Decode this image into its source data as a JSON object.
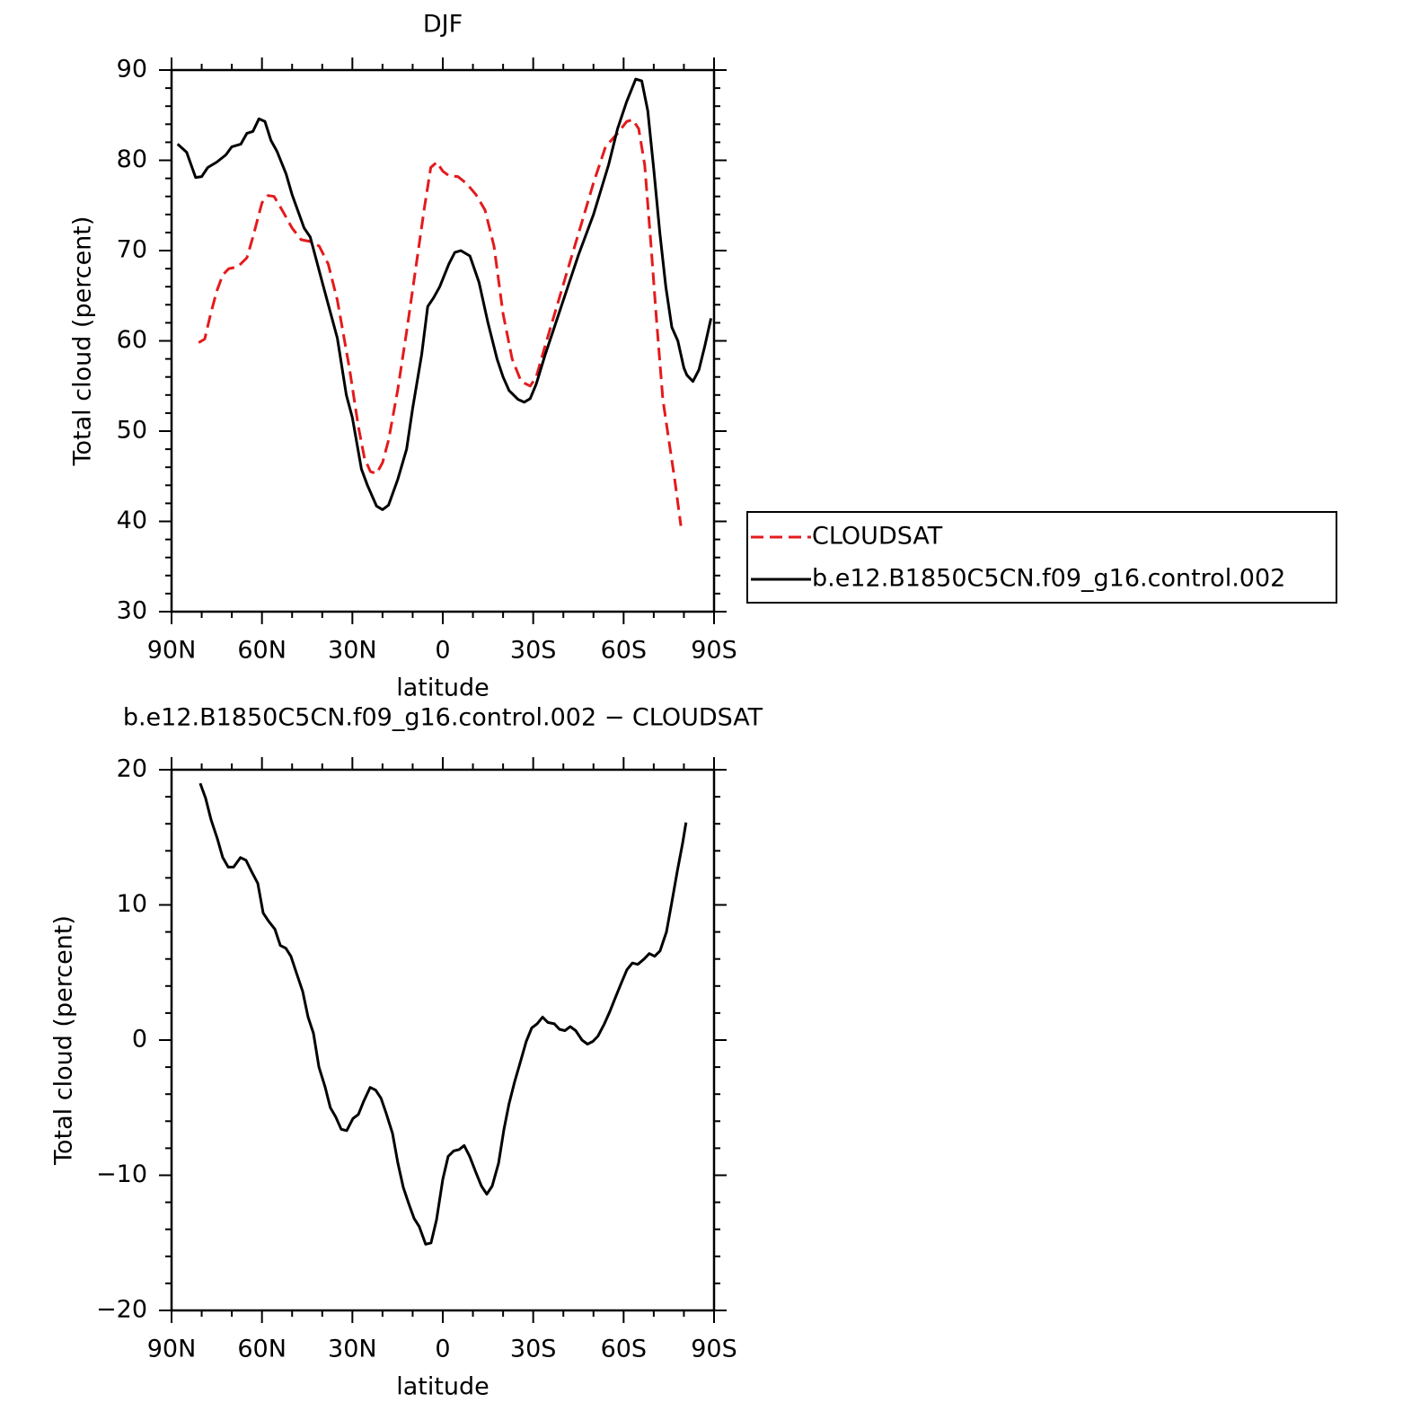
{
  "chart_data": [
    {
      "type": "line",
      "title": "DJF",
      "xlabel": "latitude",
      "ylabel": "Total cloud (percent)",
      "xlim": [
        90,
        -90
      ],
      "xticks": [
        {
          "value": 90,
          "label": "90N"
        },
        {
          "value": 60,
          "label": "60N"
        },
        {
          "value": 30,
          "label": "30N"
        },
        0,
        {
          "value": -30,
          "label": "30S"
        },
        {
          "value": -60,
          "label": "60S"
        },
        {
          "value": -90,
          "label": "90S"
        }
      ],
      "xminorticks": [
        80,
        70,
        50,
        40,
        20,
        10,
        -10,
        -20,
        -40,
        -50,
        -70,
        -80
      ],
      "ylim": [
        30,
        90
      ],
      "yticks": [
        30,
        40,
        50,
        60,
        70,
        80,
        90
      ],
      "yminorticks": [
        32,
        34,
        36,
        38,
        42,
        44,
        46,
        48,
        52,
        54,
        56,
        58,
        62,
        64,
        66,
        68,
        72,
        74,
        76,
        78,
        82,
        84,
        86,
        88
      ],
      "legend": "right",
      "series": [
        {
          "name": "CLOUDSAT",
          "color": "#e41a1c",
          "style": "dashed",
          "x": [
            81,
            79,
            77,
            75,
            73,
            71,
            68,
            65,
            63,
            60,
            58,
            56,
            53,
            50,
            47,
            44,
            41,
            38,
            35,
            31,
            28,
            26,
            24,
            22,
            20,
            18,
            15,
            12,
            9,
            6,
            4,
            2,
            0,
            -2,
            -5,
            -8,
            -11,
            -14,
            -17,
            -20,
            -23,
            -26,
            -29,
            -31,
            -34,
            -38,
            -42,
            -46,
            -50,
            -54,
            -58,
            -61,
            -63,
            -65,
            -67,
            -69,
            -71,
            -73,
            -75,
            -77,
            -79
          ],
          "values": [
            59.8,
            60.2,
            63,
            65.5,
            67.3,
            68,
            68.2,
            69.2,
            71.5,
            75.3,
            76.1,
            76,
            74.3,
            72.5,
            71.2,
            71,
            70.5,
            68.5,
            64.5,
            57,
            50.5,
            47,
            45.5,
            45.3,
            46.5,
            49,
            54.5,
            61,
            68,
            75,
            79.2,
            79.8,
            78.8,
            78.3,
            78.2,
            77.4,
            76.2,
            74.5,
            70.5,
            63,
            58,
            55.5,
            55,
            56,
            59.5,
            64,
            68.5,
            73,
            77.5,
            81.5,
            83,
            84.3,
            84.5,
            83.5,
            79.5,
            71,
            62,
            53.5,
            49,
            44.5,
            39.5
          ]
        },
        {
          "name": "b.e12.B1850C5CN.f09_g16.control.002",
          "color": "#000000",
          "style": "solid",
          "x": [
            88,
            85,
            82,
            80,
            78,
            75,
            72,
            70,
            67,
            65,
            63,
            61,
            59,
            57,
            55,
            52,
            50,
            46,
            44,
            40,
            35,
            32,
            30,
            27,
            25,
            22,
            20,
            18,
            15,
            12,
            10,
            7,
            5,
            3,
            1,
            -2,
            -4,
            -6,
            -9,
            -12,
            -15,
            -18,
            -20,
            -22,
            -25,
            -27,
            -29,
            -31,
            -34,
            -37,
            -40,
            -45,
            -50,
            -55,
            -58,
            -61,
            -64,
            -66,
            -68,
            -70,
            -72,
            -74,
            -76,
            -78,
            -80,
            -81,
            -83,
            -85,
            -87,
            -89
          ],
          "values": [
            81.8,
            80.9,
            78.1,
            78.2,
            79.2,
            79.8,
            80.6,
            81.5,
            81.8,
            83,
            83.2,
            84.6,
            84.3,
            82.2,
            81,
            78.5,
            76.2,
            72.5,
            71.5,
            66.5,
            60.3,
            54,
            51.5,
            45.8,
            44,
            41.7,
            41.3,
            41.8,
            44.6,
            48,
            52.5,
            58.5,
            63.8,
            64.8,
            66,
            68.5,
            69.8,
            70,
            69.4,
            66.5,
            62,
            58,
            56,
            54.5,
            53.5,
            53.2,
            53.6,
            55.2,
            58.5,
            61.5,
            64.5,
            69.5,
            74,
            79.5,
            83.5,
            86.5,
            89,
            88.8,
            85.5,
            79,
            72,
            66,
            61.5,
            60,
            57,
            56.2,
            55.5,
            56.8,
            59.5,
            62.5
          ]
        }
      ]
    },
    {
      "type": "line",
      "title": "b.e12.B1850C5CN.f09_g16.control.002 − CLOUDSAT",
      "xlabel": "latitude",
      "ylabel": "Total cloud (percent)",
      "xlim": [
        90,
        -90
      ],
      "xticks": [
        {
          "value": 90,
          "label": "90N"
        },
        {
          "value": 60,
          "label": "60N"
        },
        {
          "value": 30,
          "label": "30N"
        },
        0,
        {
          "value": -30,
          "label": "30S"
        },
        {
          "value": -60,
          "label": "60S"
        },
        {
          "value": -90,
          "label": "90S"
        }
      ],
      "xminorticks": [
        80,
        70,
        50,
        40,
        20,
        10,
        -10,
        -20,
        -40,
        -50,
        -70,
        -80
      ],
      "ylim": [
        -20,
        20
      ],
      "yticks": [
        {
          "value": -20,
          "label": "−20"
        },
        {
          "value": -10,
          "label": "−10"
        },
        0,
        10,
        20
      ],
      "yminorticks": [
        -18,
        -16,
        -14,
        -12,
        -8,
        -6,
        -4,
        -2,
        2,
        4,
        6,
        8,
        12,
        14,
        16,
        18
      ],
      "series": [
        {
          "color": "#000000",
          "style": "solid",
          "x": [
            80.5,
            78.7,
            76.9,
            74.8,
            73.0,
            71.2,
            69.4,
            67.1,
            65.3,
            63.5,
            61.4,
            59.6,
            57.8,
            55.7,
            53.9,
            52.1,
            50.4,
            48.6,
            46.5,
            44.7,
            42.9,
            41.1,
            39.0,
            37.3,
            35.5,
            33.7,
            31.9,
            29.8,
            28.0,
            26.2,
            24.1,
            22.3,
            20.5,
            18.8,
            16.7,
            14.9,
            13.1,
            11.3,
            9.5,
            7.8,
            5.7,
            3.9,
            2.1,
            0,
            -1.8,
            -3.6,
            -5.4,
            -7.1,
            -8.9,
            -11.0,
            -12.8,
            -14.6,
            -16.4,
            -18.5,
            -20.3,
            -22.0,
            -23.8,
            -25.9,
            -27.7,
            -29.5,
            -31.3,
            -33.1,
            -34.9,
            -37.0,
            -38.7,
            -40.5,
            -42.3,
            -44.1,
            -46.2,
            -48.0,
            -49.8,
            -51.5,
            -53.6,
            -55.4,
            -57.2,
            -59.0,
            -61.1,
            -62.9,
            -64.7,
            -66.8,
            -68.5,
            -70.3,
            -72.1,
            -74.2,
            -76.0,
            -77.8,
            -79.6,
            -80.7
          ],
          "values": [
            19.0,
            17.9,
            16.3,
            14.9,
            13.5,
            12.8,
            12.8,
            13.5,
            13.3,
            12.5,
            11.6,
            9.4,
            8.8,
            8.2,
            7.0,
            6.8,
            6.2,
            5.0,
            3.6,
            1.7,
            0.5,
            -2.0,
            -3.5,
            -5.0,
            -5.7,
            -6.6,
            -6.7,
            -5.8,
            -5.5,
            -4.5,
            -3.5,
            -3.7,
            -4.3,
            -5.4,
            -6.9,
            -9.1,
            -10.9,
            -12.1,
            -13.2,
            -13.8,
            -15.1,
            -15.0,
            -13.3,
            -10.3,
            -8.6,
            -8.2,
            -8.1,
            -7.8,
            -8.6,
            -9.8,
            -10.8,
            -11.4,
            -10.8,
            -9.1,
            -6.6,
            -4.7,
            -3.1,
            -1.5,
            -0.1,
            0.9,
            1.2,
            1.7,
            1.3,
            1.2,
            0.8,
            0.7,
            1.0,
            0.7,
            0.0,
            -0.3,
            -0.1,
            0.3,
            1.2,
            2.1,
            3.1,
            4.1,
            5.2,
            5.7,
            5.6,
            6.0,
            6.4,
            6.2,
            6.6,
            8.0,
            10.2,
            12.5,
            14.6,
            16.1
          ]
        }
      ]
    }
  ]
}
